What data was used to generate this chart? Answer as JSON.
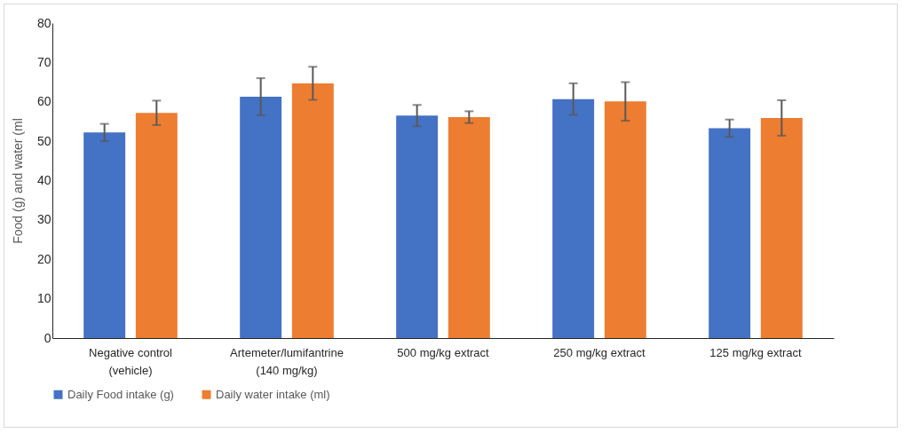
{
  "chart_data": {
    "type": "bar",
    "ylabel": "Food (g) and water (ml",
    "categories": [
      "Negative control (vehicle)",
      "Artemeter/lumifantrine (140 mg/kg)",
      "500 mg/kg extract",
      "250 mg/kg extract",
      "125 mg/kg extract"
    ],
    "series": [
      {
        "name": "Daily Food intake (g)",
        "color": "#4472c4",
        "values": [
          52.2,
          61.3,
          56.5,
          60.7,
          53.3
        ],
        "errors": [
          2.2,
          4.7,
          2.7,
          4.0,
          2.2
        ]
      },
      {
        "name": "Daily water intake (ml)",
        "color": "#ed7d31",
        "values": [
          57.2,
          64.7,
          56.1,
          60.1,
          55.9
        ],
        "errors": [
          3.1,
          4.2,
          1.5,
          4.9,
          4.5
        ]
      }
    ],
    "ylim": [
      0,
      80
    ],
    "yticks": [
      0,
      10,
      20,
      30,
      40,
      50,
      60,
      70,
      80
    ],
    "grid": false,
    "legend": "bottom"
  }
}
